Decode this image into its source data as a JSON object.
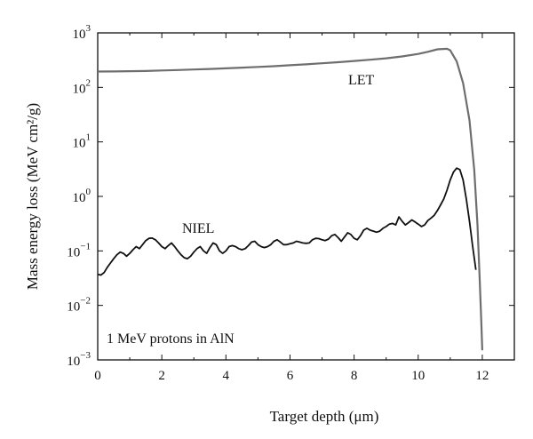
{
  "chart_data": {
    "type": "line",
    "title": "",
    "xlabel": "Target depth (μm)",
    "ylabel": "Mass energy loss (MeV cm²/g)",
    "xlim": [
      0,
      13
    ],
    "ylim": [
      0.001,
      1000
    ],
    "yscale": "log",
    "grid": false,
    "legend": "none",
    "x_ticks": [
      0,
      2,
      4,
      6,
      8,
      10,
      12
    ],
    "x_tick_labels": [
      "0",
      "2",
      "4",
      "6",
      "8",
      "10",
      "12"
    ],
    "y_ticks": [
      0.001,
      0.01,
      0.1,
      1,
      10,
      100,
      1000
    ],
    "y_tick_bases": [
      "10",
      "10",
      "10",
      "10",
      "10",
      "10",
      "10"
    ],
    "y_tick_exps": [
      "−3",
      "−2",
      "−1",
      "0",
      "1",
      "2",
      "3"
    ],
    "annotation": "1 MeV protons in AlN",
    "series": [
      {
        "name": "LET",
        "color": "#6e6e6e",
        "x": [
          0,
          0.5,
          1,
          1.5,
          2,
          2.5,
          3,
          3.5,
          4,
          4.5,
          5,
          5.5,
          6,
          6.5,
          7,
          7.5,
          8,
          8.5,
          9,
          9.5,
          10,
          10.3,
          10.6,
          10.9,
          11.0,
          11.2,
          11.4,
          11.6,
          11.75,
          11.85,
          11.92,
          11.97,
          12.0
        ],
        "y": [
          195,
          196,
          198,
          200,
          204,
          208,
          213,
          218,
          224,
          230,
          237,
          245,
          255,
          265,
          277,
          290,
          305,
          322,
          342,
          370,
          410,
          450,
          500,
          510,
          480,
          300,
          120,
          25,
          3,
          0.3,
          0.03,
          0.005,
          0.0015
        ]
      },
      {
        "name": "NIEL",
        "color": "#111111",
        "x": [
          0.0,
          0.1,
          0.2,
          0.3,
          0.4,
          0.5,
          0.6,
          0.7,
          0.8,
          0.9,
          1.0,
          1.1,
          1.2,
          1.3,
          1.4,
          1.5,
          1.6,
          1.7,
          1.8,
          1.9,
          2.0,
          2.1,
          2.2,
          2.3,
          2.4,
          2.5,
          2.6,
          2.7,
          2.8,
          2.9,
          3.0,
          3.1,
          3.2,
          3.3,
          3.4,
          3.5,
          3.6,
          3.7,
          3.8,
          3.9,
          4.0,
          4.1,
          4.2,
          4.3,
          4.4,
          4.5,
          4.6,
          4.7,
          4.8,
          4.9,
          5.0,
          5.1,
          5.2,
          5.3,
          5.4,
          5.5,
          5.6,
          5.7,
          5.8,
          5.9,
          6.0,
          6.1,
          6.2,
          6.3,
          6.4,
          6.5,
          6.6,
          6.7,
          6.8,
          6.9,
          7.0,
          7.1,
          7.2,
          7.3,
          7.4,
          7.5,
          7.6,
          7.7,
          7.8,
          7.9,
          8.0,
          8.1,
          8.2,
          8.3,
          8.4,
          8.5,
          8.6,
          8.7,
          8.8,
          8.9,
          9.0,
          9.1,
          9.2,
          9.3,
          9.4,
          9.5,
          9.6,
          9.7,
          9.8,
          9.9,
          10.0,
          10.1,
          10.2,
          10.3,
          10.4,
          10.5,
          10.6,
          10.7,
          10.8,
          10.9,
          11.0,
          11.1,
          11.2,
          11.3,
          11.4,
          11.5,
          11.6,
          11.7,
          11.8
        ],
        "y": [
          0.037,
          0.036,
          0.04,
          0.05,
          0.06,
          0.072,
          0.085,
          0.095,
          0.09,
          0.08,
          0.09,
          0.105,
          0.12,
          0.11,
          0.13,
          0.155,
          0.17,
          0.172,
          0.16,
          0.14,
          0.12,
          0.11,
          0.125,
          0.14,
          0.12,
          0.1,
          0.085,
          0.075,
          0.072,
          0.08,
          0.095,
          0.11,
          0.12,
          0.1,
          0.09,
          0.115,
          0.14,
          0.13,
          0.1,
          0.09,
          0.1,
          0.12,
          0.125,
          0.12,
          0.11,
          0.105,
          0.11,
          0.125,
          0.145,
          0.15,
          0.13,
          0.12,
          0.115,
          0.12,
          0.13,
          0.15,
          0.16,
          0.145,
          0.13,
          0.13,
          0.135,
          0.14,
          0.15,
          0.145,
          0.14,
          0.138,
          0.14,
          0.16,
          0.17,
          0.168,
          0.16,
          0.155,
          0.165,
          0.19,
          0.2,
          0.175,
          0.15,
          0.18,
          0.215,
          0.2,
          0.17,
          0.16,
          0.19,
          0.24,
          0.26,
          0.24,
          0.23,
          0.22,
          0.23,
          0.26,
          0.28,
          0.31,
          0.32,
          0.3,
          0.42,
          0.35,
          0.3,
          0.33,
          0.37,
          0.34,
          0.31,
          0.28,
          0.3,
          0.36,
          0.4,
          0.45,
          0.55,
          0.7,
          0.9,
          1.3,
          2.0,
          2.8,
          3.3,
          3.1,
          2.0,
          0.9,
          0.35,
          0.12,
          0.045
        ]
      }
    ],
    "series_labels": [
      "LET",
      "NIEL"
    ]
  }
}
